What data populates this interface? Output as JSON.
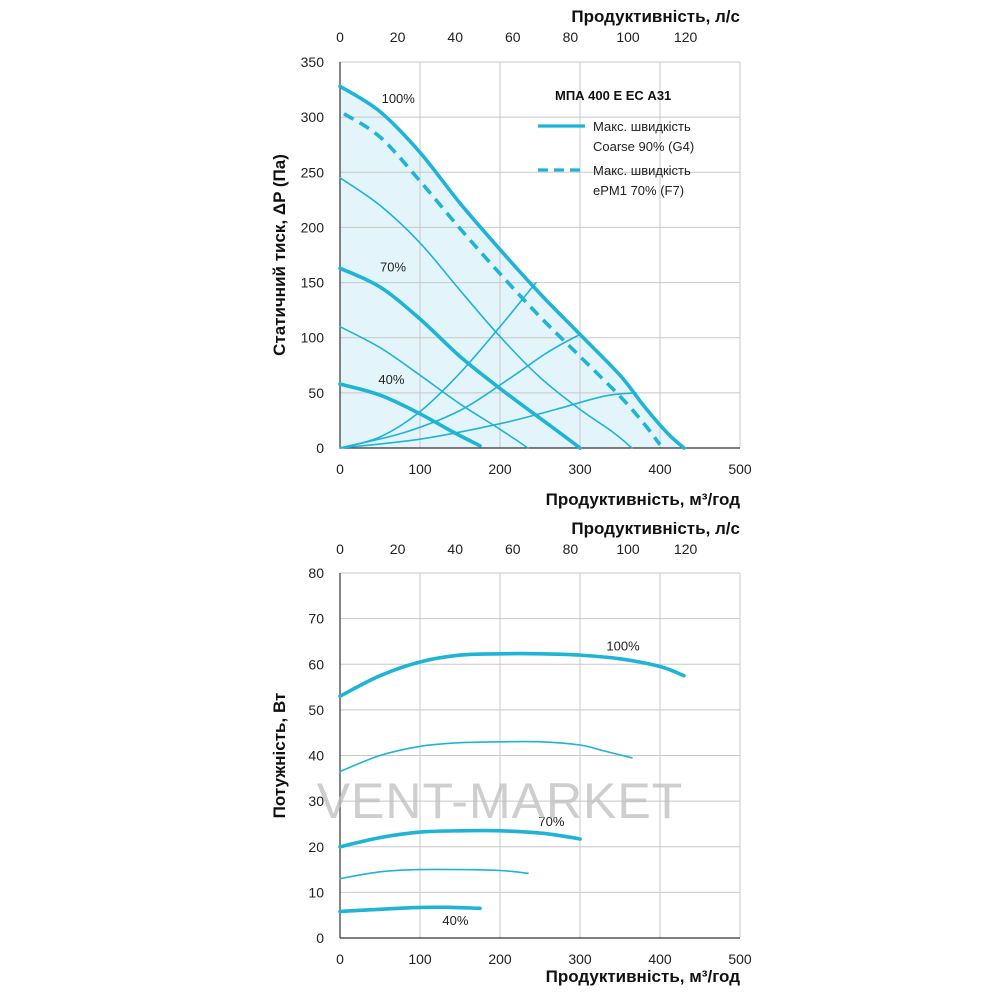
{
  "watermark": "VENT-MARKET",
  "colors": {
    "curve": "#1fb3d6",
    "fill": "#e3f5fa",
    "grid": "#c8c8c8",
    "axis": "#333333"
  },
  "chart_data": [
    {
      "type": "line",
      "xlabel": "Продуктивність, м³/год",
      "x2label": "Продуктивність, л/с",
      "ylabel": "Статичний тиск, ΔP (Па)",
      "xlim": [
        0,
        500
      ],
      "ylim": [
        0,
        350
      ],
      "x_ticks": [
        0,
        100,
        200,
        300,
        400,
        500
      ],
      "y_ticks": [
        0,
        50,
        100,
        150,
        200,
        250,
        300,
        350
      ],
      "x2_ticks": [
        0,
        20,
        40,
        60,
        80,
        100,
        120
      ],
      "grid": true,
      "legend_position": "top-right",
      "legend_title": "МПА 400 Е ЕС А31",
      "legend": [
        {
          "style": "solid",
          "lines": [
            "Макс. швидкість",
            "Coarse 90% (G4)"
          ]
        },
        {
          "style": "dashed",
          "lines": [
            "Макс. швидкість",
            "ePM1 70% (F7)"
          ]
        }
      ],
      "series": [
        {
          "label": "100%",
          "width": "thick",
          "points": [
            [
              0,
              328
            ],
            [
              50,
              305
            ],
            [
              100,
              268
            ],
            [
              150,
              222
            ],
            [
              200,
              180
            ],
            [
              250,
              140
            ],
            [
              300,
              103
            ],
            [
              350,
              66
            ],
            [
              380,
              38
            ],
            [
              410,
              13
            ],
            [
              430,
              0
            ]
          ]
        },
        {
          "width": "thin",
          "points": [
            [
              0,
              245
            ],
            [
              50,
              220
            ],
            [
              100,
              186
            ],
            [
              150,
              143
            ],
            [
              200,
              101
            ],
            [
              250,
              64
            ],
            [
              300,
              35
            ],
            [
              340,
              15
            ],
            [
              365,
              0
            ]
          ]
        },
        {
          "label": "70%",
          "width": "thick",
          "points": [
            [
              0,
              163
            ],
            [
              50,
              146
            ],
            [
              100,
              117
            ],
            [
              150,
              83
            ],
            [
              200,
              54
            ],
            [
              250,
              27
            ],
            [
              280,
              11
            ],
            [
              300,
              0
            ]
          ]
        },
        {
          "width": "thin",
          "points": [
            [
              0,
              110
            ],
            [
              50,
              91
            ],
            [
              100,
              66
            ],
            [
              150,
              40
            ],
            [
              200,
              17
            ],
            [
              235,
              0
            ]
          ]
        },
        {
          "label": "40%",
          "width": "thick",
          "points": [
            [
              0,
              58
            ],
            [
              50,
              48
            ],
            [
              100,
              31
            ],
            [
              140,
              15
            ],
            [
              175,
              2
            ]
          ]
        },
        {
          "style": "dashed",
          "width": "thick",
          "points": [
            [
              5,
              303
            ],
            [
              50,
              282
            ],
            [
              100,
              242
            ],
            [
              150,
              199
            ],
            [
              200,
              158
            ],
            [
              250,
              119
            ],
            [
              300,
              83
            ],
            [
              350,
              47
            ],
            [
              380,
              22
            ],
            [
              400,
              3
            ]
          ]
        },
        {
          "width": "thin",
          "points": [
            [
              0,
              0
            ],
            [
              50,
              10
            ],
            [
              100,
              33
            ],
            [
              150,
              68
            ],
            [
              200,
              110
            ],
            [
              245,
              150
            ]
          ]
        },
        {
          "width": "thin",
          "points": [
            [
              0,
              0
            ],
            [
              80,
              14
            ],
            [
              150,
              34
            ],
            [
              210,
              62
            ],
            [
              260,
              87
            ],
            [
              300,
              103
            ]
          ]
        },
        {
          "width": "thin",
          "points": [
            [
              0,
              0
            ],
            [
              100,
              8
            ],
            [
              200,
              22
            ],
            [
              270,
              35
            ],
            [
              330,
              47
            ],
            [
              370,
              50
            ]
          ]
        }
      ],
      "curve_labels": [
        {
          "text": "100%",
          "x": 52,
          "y": 313
        },
        {
          "text": "70%",
          "x": 50,
          "y": 160
        },
        {
          "text": "40%",
          "x": 48,
          "y": 58
        }
      ]
    },
    {
      "type": "line",
      "xlabel": "Продуктивність, м³/год",
      "x2label": "Продуктивність, л/с",
      "ylabel": "Потужність, Вт",
      "xlim": [
        0,
        500
      ],
      "ylim": [
        0,
        80
      ],
      "x_ticks": [
        0,
        100,
        200,
        300,
        400,
        500
      ],
      "y_ticks": [
        0,
        10,
        20,
        30,
        40,
        50,
        60,
        70,
        80
      ],
      "x2_ticks": [
        0,
        20,
        40,
        60,
        80,
        100,
        120
      ],
      "grid": true,
      "series": [
        {
          "label": "100%",
          "width": "thick",
          "points": [
            [
              0,
              53
            ],
            [
              50,
              57.5
            ],
            [
              100,
              60.5
            ],
            [
              150,
              62
            ],
            [
              200,
              62.3
            ],
            [
              250,
              62.3
            ],
            [
              300,
              62
            ],
            [
              350,
              61.2
            ],
            [
              400,
              59.5
            ],
            [
              430,
              57.5
            ]
          ]
        },
        {
          "width": "thin",
          "points": [
            [
              0,
              36.5
            ],
            [
              50,
              40
            ],
            [
              100,
              42
            ],
            [
              150,
              42.8
            ],
            [
              200,
              43
            ],
            [
              250,
              43
            ],
            [
              300,
              42.3
            ],
            [
              330,
              41
            ],
            [
              365,
              39.5
            ]
          ]
        },
        {
          "label": "70%",
          "width": "thick",
          "points": [
            [
              0,
              20
            ],
            [
              50,
              22
            ],
            [
              100,
              23.2
            ],
            [
              150,
              23.5
            ],
            [
              200,
              23.5
            ],
            [
              250,
              23
            ],
            [
              280,
              22.3
            ],
            [
              300,
              21.7
            ]
          ]
        },
        {
          "width": "thin",
          "points": [
            [
              0,
              13
            ],
            [
              50,
              14.5
            ],
            [
              100,
              15
            ],
            [
              150,
              15
            ],
            [
              200,
              14.8
            ],
            [
              235,
              14.2
            ]
          ]
        },
        {
          "label": "40%",
          "width": "thick",
          "points": [
            [
              0,
              5.8
            ],
            [
              50,
              6.3
            ],
            [
              100,
              6.7
            ],
            [
              140,
              6.7
            ],
            [
              175,
              6.5
            ]
          ]
        }
      ],
      "curve_labels": [
        {
          "text": "100%",
          "x": 333,
          "y": 63
        },
        {
          "text": "70%",
          "x": 248,
          "y": 24.5
        },
        {
          "text": "40%",
          "x": 128,
          "y": 2.8
        }
      ]
    }
  ]
}
